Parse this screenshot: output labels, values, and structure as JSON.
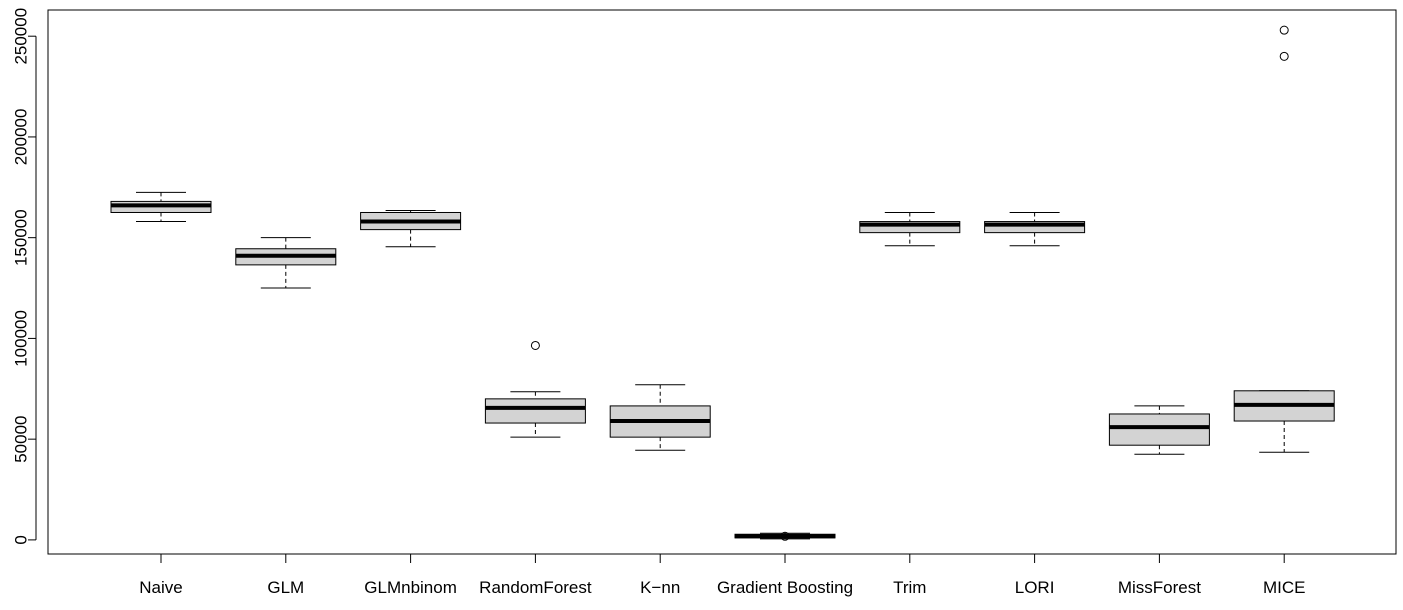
{
  "chart_data": {
    "type": "box",
    "title": "",
    "xlabel": "",
    "ylabel": "",
    "ylim": [
      -7000,
      263000
    ],
    "y_ticks": [
      0,
      50000,
      100000,
      150000,
      200000,
      250000
    ],
    "y_tick_labels": [
      "0",
      "50000",
      "100000",
      "150000",
      "200000",
      "250000"
    ],
    "grid": false,
    "categories": [
      "Naive",
      "GLM",
      "GLMnbinom",
      "RandomForest",
      "K−nn",
      "Gradient Boosting",
      "Trim",
      "LORI",
      "MissForest",
      "MICE"
    ],
    "boxes": [
      {
        "min": 158000,
        "q1": 162500,
        "median": 166000,
        "q3": 168000,
        "max": 172500,
        "outliers": []
      },
      {
        "min": 125000,
        "q1": 136500,
        "median": 141000,
        "q3": 144500,
        "max": 150000,
        "outliers": []
      },
      {
        "min": 145500,
        "q1": 154000,
        "median": 158000,
        "q3": 162500,
        "max": 163500,
        "outliers": []
      },
      {
        "min": 51000,
        "q1": 58000,
        "median": 65500,
        "q3": 70000,
        "max": 73500,
        "outliers": [
          96500
        ]
      },
      {
        "min": 44500,
        "q1": 51000,
        "median": 59000,
        "q3": 66500,
        "max": 77000,
        "outliers": []
      },
      {
        "min": 500,
        "q1": 1000,
        "median": 1800,
        "q3": 2800,
        "max": 3300,
        "outliers": [
          1800
        ]
      },
      {
        "min": 146000,
        "q1": 152500,
        "median": 156500,
        "q3": 158000,
        "max": 162500,
        "outliers": []
      },
      {
        "min": 146000,
        "q1": 152500,
        "median": 156500,
        "q3": 158000,
        "max": 162500,
        "outliers": []
      },
      {
        "min": 42500,
        "q1": 47000,
        "median": 56000,
        "q3": 62500,
        "max": 66500,
        "outliers": []
      },
      {
        "min": 43500,
        "q1": 59000,
        "median": 67000,
        "q3": 74000,
        "max": 74000,
        "outliers": [
          240000,
          253000
        ]
      }
    ]
  }
}
